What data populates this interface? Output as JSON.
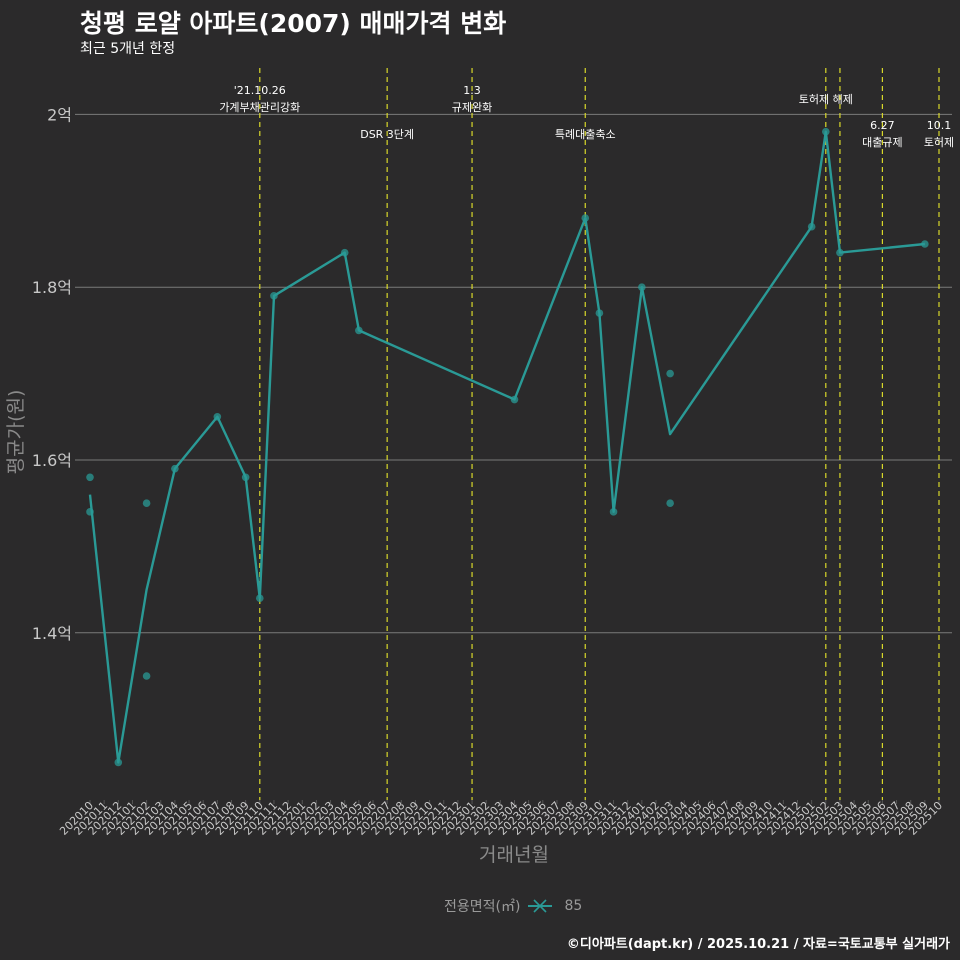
{
  "title": "청평 로얄 아파트(2007) 매매가격 변화",
  "subtitle": "최근 5개년 한정",
  "caption": "©디아파트(dapt.kr) / 2025.10.21 / 자료=국토교통부 실거래가",
  "legend": {
    "title": "전용면적(㎡)",
    "entries": [
      "85"
    ]
  },
  "colors": {
    "background": "#2b2a2b",
    "line": "#2a9a96",
    "grid": "#7a7a7a",
    "event_line": "#d8d82a",
    "axis_text": "#c8c8c8"
  },
  "chart_data": {
    "type": "line",
    "title": "청평 로얄 아파트(2007) 매매가격 변화",
    "subtitle": "최근 5개년 한정",
    "xlabel": "거래년월",
    "ylabel": "평균가(원)",
    "ylim": [
      1.22,
      2.05
    ],
    "yticks": [
      {
        "value": 1.4,
        "label": "1.4억"
      },
      {
        "value": 1.6,
        "label": "1.6억"
      },
      {
        "value": 1.8,
        "label": "1.8억"
      },
      {
        "value": 2.0,
        "label": "2억"
      }
    ],
    "categories": [
      "202010",
      "202011",
      "202012",
      "202101",
      "202102",
      "202103",
      "202104",
      "202105",
      "202106",
      "202107",
      "202108",
      "202109",
      "202110",
      "202111",
      "202112",
      "202201",
      "202202",
      "202203",
      "202204",
      "202205",
      "202206",
      "202207",
      "202208",
      "202209",
      "202210",
      "202211",
      "202212",
      "202301",
      "202302",
      "202303",
      "202304",
      "202305",
      "202306",
      "202307",
      "202308",
      "202309",
      "202310",
      "202311",
      "202312",
      "202401",
      "202402",
      "202403",
      "202404",
      "202405",
      "202406",
      "202407",
      "202408",
      "202409",
      "202410",
      "202411",
      "202412",
      "202501",
      "202502",
      "202503",
      "202504",
      "202505",
      "202506",
      "202507",
      "202508",
      "202509",
      "202510"
    ],
    "series": [
      {
        "name": "85",
        "line": [
          [
            "202010",
            1.56
          ],
          [
            "202012",
            1.25
          ],
          [
            "202102",
            1.45
          ],
          [
            "202104",
            1.59
          ],
          [
            "202107",
            1.65
          ],
          [
            "202109",
            1.58
          ],
          [
            "202110",
            1.44
          ],
          [
            "202111",
            1.79
          ],
          [
            "202204",
            1.84
          ],
          [
            "202205",
            1.75
          ],
          [
            "202304",
            1.67
          ],
          [
            "202309",
            1.88
          ],
          [
            "202310",
            1.77
          ],
          [
            "202311",
            1.54
          ],
          [
            "202401",
            1.8
          ],
          [
            "202403",
            1.63
          ],
          [
            "202501",
            1.87
          ],
          [
            "202502",
            1.98
          ],
          [
            "202503",
            1.84
          ],
          [
            "202509",
            1.85
          ]
        ],
        "points": [
          [
            "202010",
            1.58
          ],
          [
            "202010",
            1.54
          ],
          [
            "202012",
            1.25
          ],
          [
            "202102",
            1.55
          ],
          [
            "202102",
            1.35
          ],
          [
            "202104",
            1.59
          ],
          [
            "202107",
            1.65
          ],
          [
            "202109",
            1.58
          ],
          [
            "202110",
            1.44
          ],
          [
            "202111",
            1.79
          ],
          [
            "202204",
            1.84
          ],
          [
            "202205",
            1.75
          ],
          [
            "202304",
            1.67
          ],
          [
            "202309",
            1.88
          ],
          [
            "202310",
            1.77
          ],
          [
            "202311",
            1.54
          ],
          [
            "202401",
            1.8
          ],
          [
            "202403",
            1.7
          ],
          [
            "202403",
            1.55
          ],
          [
            "202501",
            1.87
          ],
          [
            "202502",
            1.98
          ],
          [
            "202503",
            1.84
          ],
          [
            "202509",
            1.85
          ]
        ]
      }
    ],
    "events": [
      {
        "month": "202110",
        "labels": [
          "'21.10.26",
          "가계부채관리강화"
        ],
        "level": 0
      },
      {
        "month": "202207",
        "labels": [
          "DSR 3단계"
        ],
        "level": 1
      },
      {
        "month": "202301",
        "labels": [
          "1.3",
          "규제완화"
        ],
        "level": 0
      },
      {
        "month": "202309",
        "labels": [
          "특례대출축소"
        ],
        "level": 1
      },
      {
        "month": "202502",
        "labels": [
          "토허제 해제"
        ],
        "level": 0
      },
      {
        "month": "202503",
        "labels": [],
        "level": 0
      },
      {
        "month": "202506",
        "labels": [
          "6.27",
          "대출규제"
        ],
        "level": 2
      },
      {
        "month": "202510",
        "labels": [
          "10.1",
          "토허제"
        ],
        "level": 2
      }
    ]
  }
}
